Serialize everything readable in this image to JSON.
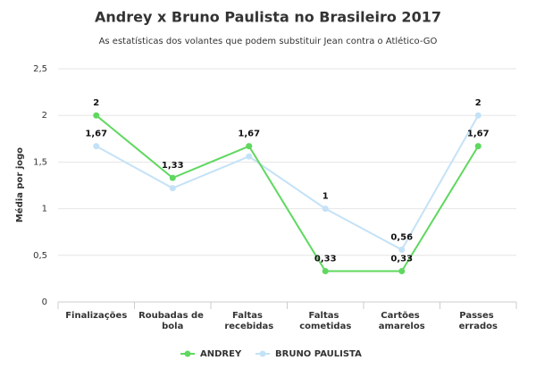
{
  "chart_data": {
    "type": "line",
    "title": "Andrey x Bruno Paulista no Brasileiro 2017",
    "subtitle": "As estatísticas dos volantes que podem substituir Jean contra o Atlético-GO",
    "y_label": "Média por jogo",
    "categories": [
      "Finalizações",
      "Roubadas de bola",
      "Faltas recebidas",
      "Faltas cometidas",
      "Cartões amarelos",
      "Passes errados"
    ],
    "series": [
      {
        "name": "ANDREY",
        "color": "#5fd85f",
        "values": [
          2,
          1.33,
          1.67,
          0.33,
          0.33,
          1.67
        ],
        "value_labels": [
          "2",
          "1,33",
          "1,67",
          "0,33",
          "0,33",
          "1,67"
        ]
      },
      {
        "name": "BRUNO PAULISTA",
        "color": "#c4e2f7",
        "values": [
          1.67,
          1.22,
          1.56,
          1,
          0.56,
          2
        ],
        "value_labels": [
          "1,67",
          null,
          null,
          "1",
          "0,56",
          "2"
        ]
      }
    ],
    "ylim": [
      0,
      2.5
    ],
    "yticks": [
      0,
      {
        "value": 0.5,
        "label": "0,5"
      },
      1,
      {
        "value": 1.5,
        "label": "1,5"
      },
      2,
      {
        "value": 2.5,
        "label": "2,5"
      }
    ],
    "grid": true,
    "legend": "bottom"
  }
}
